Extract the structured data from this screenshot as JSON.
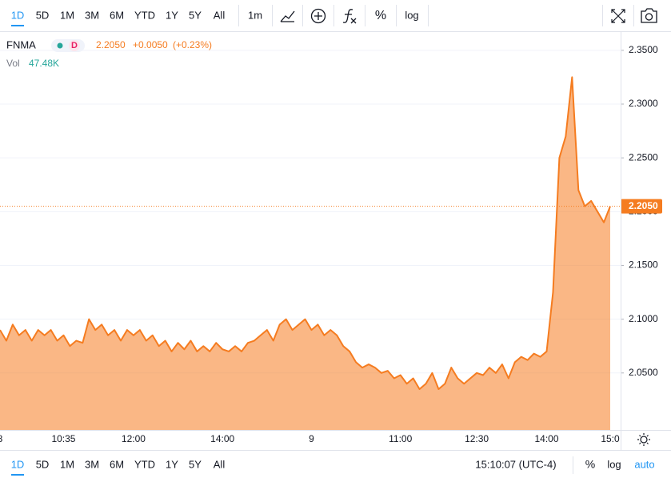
{
  "toolbar": {
    "ranges": [
      "1D",
      "5D",
      "1M",
      "3M",
      "6M",
      "YTD",
      "1Y",
      "5Y",
      "All"
    ],
    "interval": "1m",
    "percent": "%",
    "log": "log"
  },
  "legend": {
    "flag": "D",
    "change": "+0.0050",
    "change_pct": "(+0.23%)",
    "volume_label": "Vol",
    "volume": "47.48K"
  },
  "chart_data": {
    "type": "area",
    "categories": [
      "8",
      null,
      null,
      null,
      null,
      null,
      null,
      null,
      null,
      null,
      "10:35",
      null,
      null,
      null,
      null,
      null,
      null,
      null,
      null,
      null,
      null,
      "12:00",
      null,
      null,
      null,
      null,
      null,
      null,
      null,
      null,
      null,
      null,
      null,
      null,
      null,
      "14:00",
      null,
      null,
      null,
      null,
      null,
      null,
      null,
      null,
      null,
      null,
      null,
      null,
      null,
      "9",
      null,
      null,
      null,
      null,
      null,
      null,
      null,
      null,
      null,
      null,
      null,
      null,
      null,
      "11:00",
      null,
      null,
      null,
      null,
      null,
      null,
      null,
      null,
      null,
      null,
      null,
      "12:30",
      null,
      null,
      null,
      null,
      null,
      null,
      null,
      null,
      null,
      null,
      "14:00",
      null,
      null,
      null,
      null,
      null,
      null,
      null,
      null,
      null,
      "15:0"
    ],
    "series": [
      {
        "name": "FNMA",
        "color": "#f57c20",
        "values": [
          2.09,
          2.08,
          2.095,
          2.085,
          2.09,
          2.08,
          2.09,
          2.085,
          2.09,
          2.08,
          2.085,
          2.075,
          2.08,
          2.078,
          2.1,
          2.09,
          2.095,
          2.085,
          2.09,
          2.08,
          2.09,
          2.085,
          2.09,
          2.08,
          2.085,
          2.075,
          2.08,
          2.07,
          2.078,
          2.072,
          2.08,
          2.07,
          2.075,
          2.07,
          2.078,
          2.072,
          2.07,
          2.075,
          2.07,
          2.078,
          2.08,
          2.085,
          2.09,
          2.08,
          2.095,
          2.1,
          2.09,
          2.095,
          2.1,
          2.09,
          2.095,
          2.085,
          2.09,
          2.085,
          2.075,
          2.07,
          2.06,
          2.055,
          2.058,
          2.055,
          2.05,
          2.052,
          2.045,
          2.048,
          2.04,
          2.045,
          2.035,
          2.04,
          2.05,
          2.035,
          2.04,
          2.055,
          2.045,
          2.04,
          2.045,
          2.05,
          2.048,
          2.055,
          2.05,
          2.058,
          2.045,
          2.06,
          2.065,
          2.062,
          2.068,
          2.065,
          2.07,
          2.125,
          2.25,
          2.27,
          2.325,
          2.22,
          2.205,
          2.21,
          2.2,
          2.19,
          2.205
        ]
      }
    ],
    "ylim": [
      1.997,
      2.367
    ],
    "yticks": [
      {
        "value": 2.05,
        "label": "2.0500"
      },
      {
        "value": 2.1,
        "label": "2.1000"
      },
      {
        "value": 2.15,
        "label": "2.1500"
      },
      {
        "value": 2.2,
        "label": "2.2000"
      },
      {
        "value": 2.25,
        "label": "2.2500"
      },
      {
        "value": 2.3,
        "label": "2.3000"
      },
      {
        "value": 2.35,
        "label": "2.3500"
      }
    ],
    "grid": true,
    "last_price": {
      "value": 2.205,
      "label": "2.2050"
    }
  },
  "footer": {
    "ranges": [
      "1D",
      "5D",
      "1M",
      "3M",
      "6M",
      "YTD",
      "1Y",
      "5Y",
      "All"
    ],
    "time": "15:10:07 (UTC-4)",
    "percent": "%",
    "log": "log",
    "auto": "auto"
  }
}
